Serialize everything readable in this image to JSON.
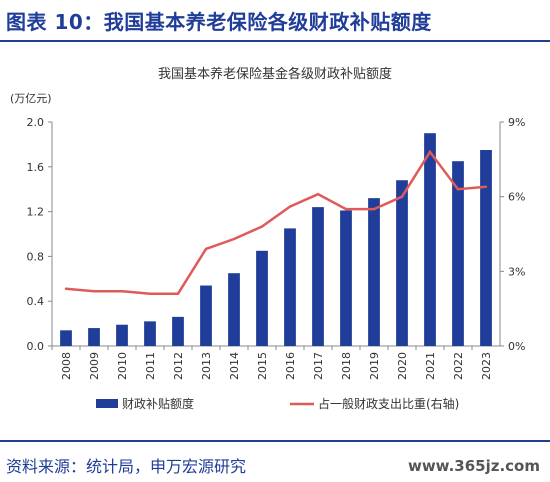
{
  "header": {
    "title": "图表 10：我国基本养老保险各级财政补贴额度"
  },
  "footer": {
    "source": "资料来源：统计局，申万宏源研究",
    "watermark": "www.365jz.com"
  },
  "chart_data": {
    "type": "bar",
    "title": "我国基本养老保险基金各级财政补贴额度",
    "ylabel": "(万亿元)",
    "ylim": [
      0,
      2.0
    ],
    "y2lim": [
      0,
      9
    ],
    "yticks": [
      "0.0",
      "0.4",
      "0.8",
      "1.2",
      "1.6",
      "2.0"
    ],
    "y2ticks": [
      "0%",
      "3%",
      "6%",
      "9%"
    ],
    "categories": [
      "2008",
      "2009",
      "2010",
      "2011",
      "2012",
      "2013",
      "2014",
      "2015",
      "2016",
      "2017",
      "2018",
      "2019",
      "2020",
      "2021",
      "2022",
      "2023"
    ],
    "series": [
      {
        "name": "财政补贴额度",
        "type": "bar",
        "color": "#1f3d99",
        "axis": "left",
        "values": [
          0.14,
          0.16,
          0.19,
          0.22,
          0.26,
          0.54,
          0.65,
          0.85,
          1.05,
          1.24,
          1.21,
          1.32,
          1.48,
          1.9,
          1.65,
          1.75
        ]
      },
      {
        "name": "占一般财政支出比重(右轴)",
        "type": "line",
        "color": "#e05a5a",
        "axis": "right",
        "values": [
          2.3,
          2.2,
          2.2,
          2.1,
          2.1,
          3.9,
          4.3,
          4.8,
          5.6,
          6.1,
          5.5,
          5.5,
          6.0,
          7.8,
          6.3,
          6.4
        ]
      }
    ],
    "grid": false,
    "legend": "bottom"
  }
}
